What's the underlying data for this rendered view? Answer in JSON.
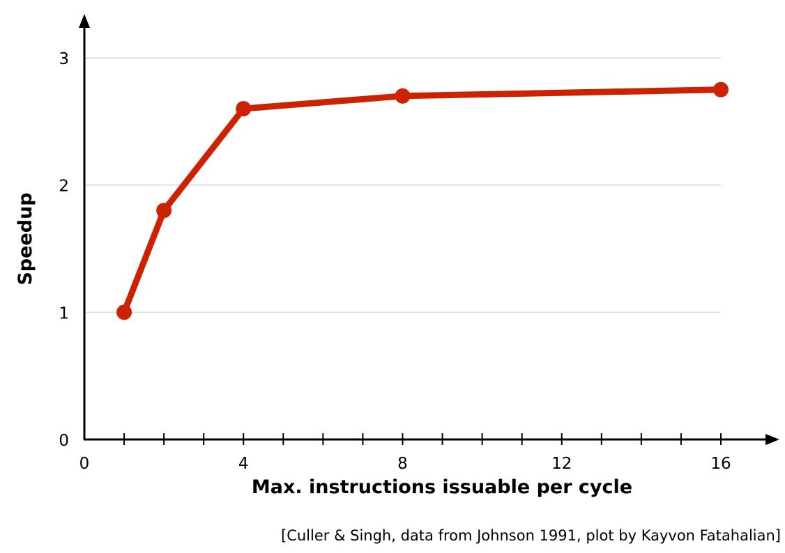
{
  "chart_data": {
    "type": "line",
    "title": "",
    "xlabel": "Max. instructions issuable per cycle",
    "ylabel": "Speedup",
    "xlim": [
      0,
      16
    ],
    "ylim": [
      0,
      3
    ],
    "x_ticks": [
      0,
      4,
      8,
      12,
      16
    ],
    "x_minor_ticks": [
      1,
      2,
      3,
      5,
      6,
      7,
      9,
      10,
      11,
      13,
      14,
      15
    ],
    "y_ticks": [
      0,
      1,
      2,
      3
    ],
    "grid": "horizontal",
    "series": [
      {
        "color": "#cc2200",
        "x": [
          1,
          2,
          4,
          8,
          16
        ],
        "y": [
          1.0,
          1.8,
          2.6,
          2.7,
          2.75
        ]
      }
    ]
  },
  "credit": "[Culler & Singh, data from Johnson 1991, plot by Kayvon Fatahalian]"
}
